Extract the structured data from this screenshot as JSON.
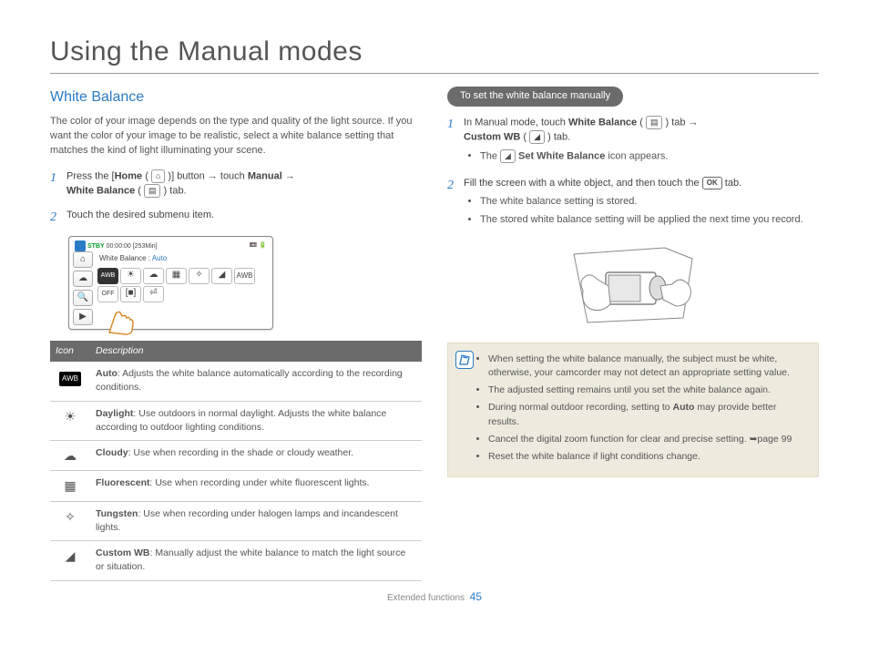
{
  "page": {
    "title": "Using the Manual modes",
    "footer_section": "Extended functions",
    "footer_page": "45"
  },
  "left": {
    "heading": "White Balance",
    "intro": "The color of your image depends on the type and quality of the light source. If you want the color of your image to be realistic, select a white balance setting that matches the kind of light illuminating your scene.",
    "step1_prefix": "Press the [",
    "step1_home": "Home",
    "step1_mid1": " ( ",
    "step1_mid2": " )] button → touch ",
    "step1_manual": "Manual",
    "step1_mid3": " → ",
    "step1_wb": "White Balance",
    "step1_tab": " tab.",
    "step2": "Touch the desired submenu item.",
    "lcd": {
      "stby": "STBY",
      "time": "00:00:00",
      "remain": "[253Min]",
      "label_prefix": "White Balance : ",
      "label_value": "Auto"
    },
    "table": {
      "h_icon": "Icon",
      "h_desc": "Description",
      "rows": [
        {
          "icon": "AWB",
          "name": "Auto",
          "desc": ": Adjusts the white balance automatically according to the recording conditions."
        },
        {
          "icon": "☀",
          "name": "Daylight",
          "desc": ": Use outdoors in normal daylight. Adjusts the white balance according to outdoor lighting conditions."
        },
        {
          "icon": "☁",
          "name": "Cloudy",
          "desc": ": Use when recording in the shade or cloudy weather."
        },
        {
          "icon": "▦",
          "name": "Fluorescent",
          "desc": ": Use when recording under white fluorescent lights."
        },
        {
          "icon": "✧",
          "name": "Tungsten",
          "desc": ": Use when recording under halogen lamps and incandescent lights."
        },
        {
          "icon": "◢",
          "name": "Custom WB",
          "desc": ": Manually adjust the white balance to match the light source or situation."
        }
      ]
    }
  },
  "right": {
    "pill": "To set the white balance manually",
    "step1_prefix": "In Manual mode, touch ",
    "step1_wb": "White Balance",
    "step1_mid1": " tab → ",
    "step1_custom": "Custom WB",
    "step1_tab": " tab.",
    "step1_bullet_prefix": "The ",
    "step1_bullet_bold": "Set White Balance",
    "step1_bullet_suffix": " icon appears.",
    "step2_prefix": "Fill the screen with a white object, and then touch the ",
    "step2_suffix": " tab.",
    "step2_bullets": [
      "The white balance setting is stored.",
      "The stored white balance setting will be applied the next time you record."
    ],
    "ok_label": "OK",
    "note": {
      "items": [
        "When setting the white balance manually, the subject must be white, otherwise, your camcorder may not detect an appropriate setting value.",
        "The adjusted setting remains until you set the white balance again.",
        "During normal outdoor recording, setting to Auto may provide better results.",
        "Cancel the digital zoom function for clear and precise setting. ➥page 99",
        "Reset the white balance if light conditions change."
      ]
    }
  }
}
